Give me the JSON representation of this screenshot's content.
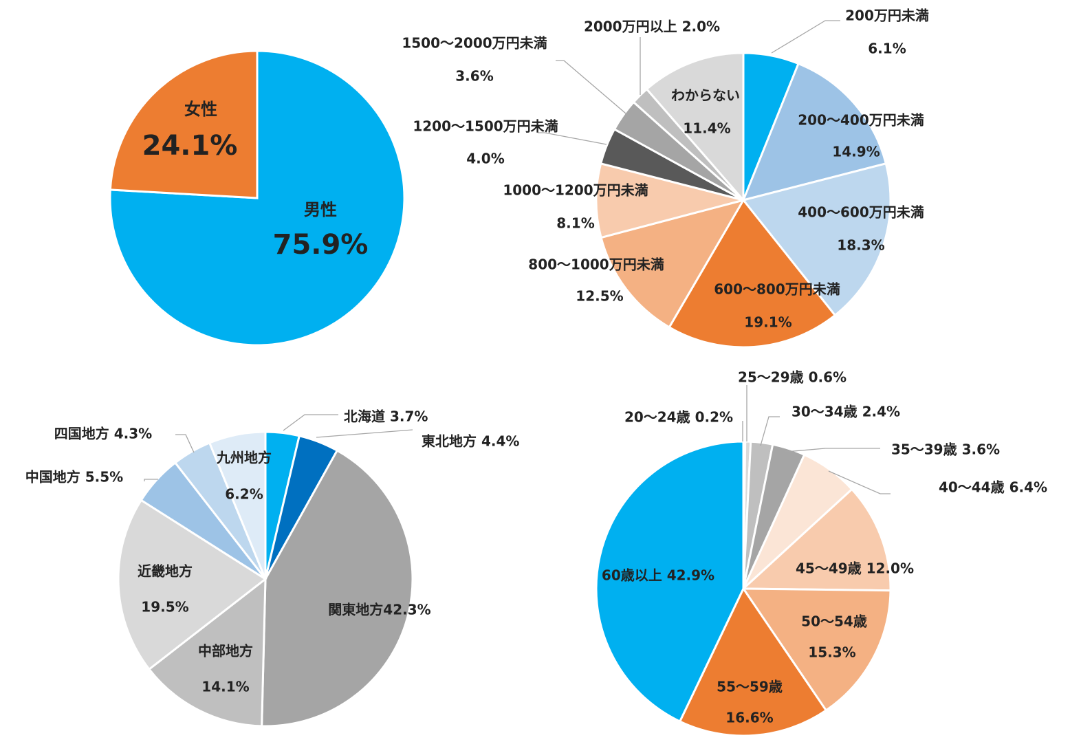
{
  "colors": {
    "blue": "#00B0F0",
    "orange": "#ED7D31",
    "light_blue_1": "#9DC3E6",
    "light_blue_2": "#BDD7EE",
    "light_blue_3": "#DEEBF7",
    "dark_blue": "#0070C0",
    "peach_1": "#F4B183",
    "peach_2": "#F8CBAD",
    "peach_3": "#FBE5D6",
    "gray_1": "#A5A5A5",
    "gray_2": "#BFBFBF",
    "gray_3": "#D9D9D9",
    "gray_4": "#7F7F7F",
    "gray_5": "#595959"
  },
  "chart_data": [
    {
      "type": "pie",
      "title": "",
      "categories": [
        "男性",
        "女性"
      ],
      "values": [
        75.9,
        24.1
      ],
      "labels": [
        {
          "name": "男性",
          "value_text": "75.9%"
        },
        {
          "name": "女性",
          "value_text": "24.1%"
        }
      ],
      "slice_colors": [
        "#00B0F0",
        "#ED7D31"
      ]
    },
    {
      "type": "pie",
      "title": "",
      "categories": [
        "200万円未満",
        "200～400万円未満",
        "400～600万円未満",
        "600～800万円未満",
        "800～1000万円未満",
        "1000～1200万円未満",
        "1200～1500万円未満",
        "1500～2000万円未満",
        "2000万円以上",
        "わからない"
      ],
      "values": [
        6.1,
        14.9,
        18.3,
        19.1,
        12.5,
        8.1,
        4.0,
        3.6,
        2.0,
        11.4
      ],
      "labels": [
        {
          "name": "200万円未満",
          "value_text": "6.1%"
        },
        {
          "name": "200～400万円未満",
          "value_text": "14.9%"
        },
        {
          "name": "400～600万円未満",
          "value_text": "18.3%"
        },
        {
          "name": "600～800万円未満",
          "value_text": "19.1%"
        },
        {
          "name": "800～1000万円未満",
          "value_text": "12.5%"
        },
        {
          "name": "1000～1200万円未満",
          "value_text": "8.1%"
        },
        {
          "name": "1200～1500万円未満",
          "value_text": "4.0%"
        },
        {
          "name": "1500～2000万円未満",
          "value_text": "3.6%"
        },
        {
          "name": "2000万円以上 2.0%",
          "value_text": ""
        },
        {
          "name": "わからない",
          "value_text": "11.4%"
        }
      ],
      "slice_colors": [
        "#00B0F0",
        "#9DC3E6",
        "#BDD7EE",
        "#ED7D31",
        "#F4B183",
        "#F8CBAD",
        "#595959",
        "#A5A5A5",
        "#BFBFBF",
        "#D9D9D9"
      ]
    },
    {
      "type": "pie",
      "title": "",
      "categories": [
        "北海道",
        "東北地方",
        "関東地方",
        "中部地方",
        "近畿地方",
        "中国地方",
        "四国地方",
        "九州地方"
      ],
      "values": [
        3.7,
        4.4,
        42.3,
        14.1,
        19.5,
        5.5,
        4.3,
        6.2
      ],
      "labels": [
        {
          "name": "北海道 3.7%",
          "value_text": ""
        },
        {
          "name": "東北地方 4.4%",
          "value_text": ""
        },
        {
          "name": "関東地方42.3%",
          "value_text": ""
        },
        {
          "name": "中部地方",
          "value_text": "14.1%"
        },
        {
          "name": "近畿地方",
          "value_text": "19.5%"
        },
        {
          "name": "中国地方 5.5%",
          "value_text": ""
        },
        {
          "name": "四国地方 4.3%",
          "value_text": ""
        },
        {
          "name": "九州地方",
          "value_text": "6.2%"
        }
      ],
      "slice_colors": [
        "#00B0F0",
        "#0070C0",
        "#A5A5A5",
        "#BFBFBF",
        "#D9D9D9",
        "#9DC3E6",
        "#BDD7EE",
        "#DEEBF7"
      ]
    },
    {
      "type": "pie",
      "title": "",
      "categories": [
        "20～24歳",
        "25～29歳",
        "30～34歳",
        "35～39歳",
        "40～44歳",
        "45～49歳",
        "50～54歳",
        "55～59歳",
        "60歳以上"
      ],
      "values": [
        0.2,
        0.6,
        2.4,
        3.6,
        6.4,
        12.0,
        15.3,
        16.6,
        42.9
      ],
      "labels": [
        {
          "name": "20～24歳 0.2%",
          "value_text": ""
        },
        {
          "name": "25～29歳 0.6%",
          "value_text": ""
        },
        {
          "name": "30～34歳 2.4%",
          "value_text": ""
        },
        {
          "name": "35～39歳 3.6%",
          "value_text": ""
        },
        {
          "name": "40～44歳 6.4%",
          "value_text": ""
        },
        {
          "name": "45～49歳 12.0%",
          "value_text": ""
        },
        {
          "name": "50～54歳",
          "value_text": "15.3%"
        },
        {
          "name": "55～59歳",
          "value_text": "16.6%"
        },
        {
          "name": "60歳以上 42.9%",
          "value_text": ""
        }
      ],
      "slice_colors": [
        "#DEEBF7",
        "#D9D9D9",
        "#BFBFBF",
        "#A5A5A5",
        "#FBE5D6",
        "#F8CBAD",
        "#F4B183",
        "#ED7D31",
        "#00B0F0"
      ]
    }
  ]
}
